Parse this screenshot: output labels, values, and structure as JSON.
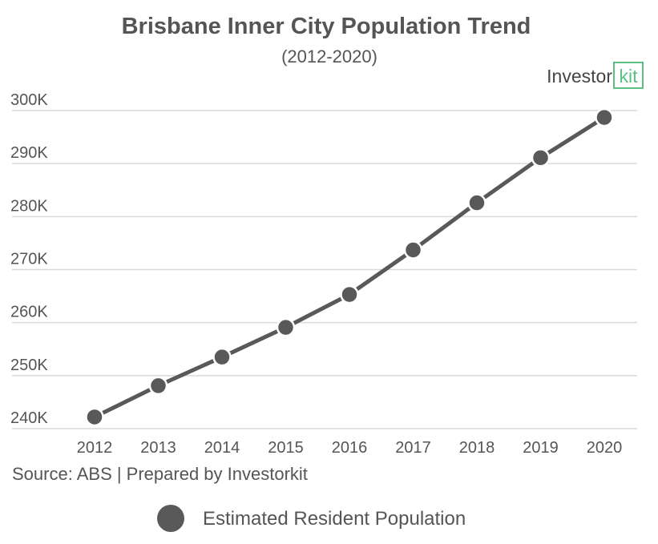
{
  "colors": {
    "series": "#595959",
    "grid": "#d9d9d9",
    "text": "#555555",
    "logo_accent": "#5bbf86"
  },
  "logo": {
    "text_main": "Investor",
    "text_accent": "kit"
  },
  "source": "Source: ABS | Prepared by Investorkit",
  "legend": {
    "placement": "bottom-center",
    "marker": "circle"
  },
  "chart_data": {
    "type": "line",
    "title": "Brisbane Inner City Population Trend",
    "subtitle": "(2012-2020)",
    "xlabel": "",
    "ylabel": "",
    "categories": [
      "2012",
      "2013",
      "2014",
      "2015",
      "2016",
      "2017",
      "2018",
      "2019",
      "2020"
    ],
    "series": [
      {
        "name": "Estimated Resident Population",
        "values": [
          242200,
          248100,
          253500,
          259100,
          265300,
          273700,
          282600,
          291100,
          298700
        ]
      }
    ],
    "ylim": [
      240000,
      300000
    ],
    "yticks": [
      240000,
      250000,
      260000,
      270000,
      280000,
      290000,
      300000
    ],
    "ytick_labels": [
      "240K",
      "250K",
      "260K",
      "270K",
      "280K",
      "290K",
      "300K"
    ],
    "grid": true,
    "markers": true
  }
}
